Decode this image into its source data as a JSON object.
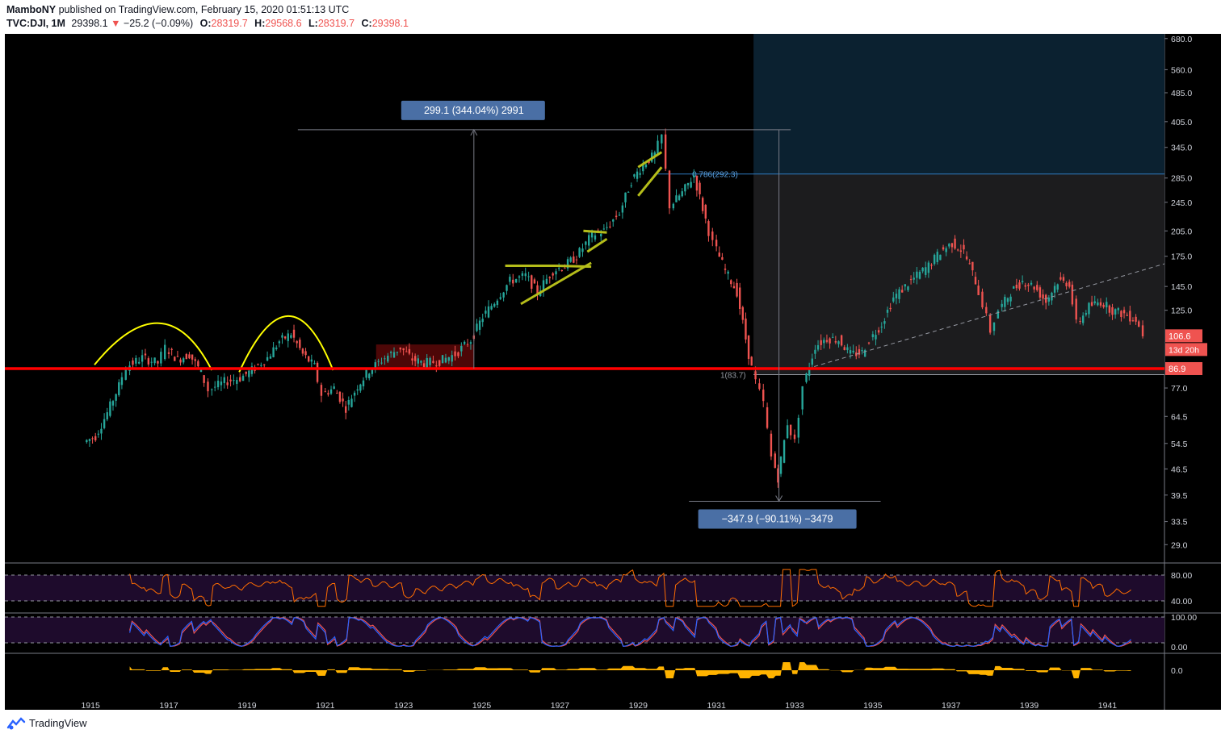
{
  "header": {
    "publisher": "MamboNY",
    "published_text": "published on TradingView.com, February 15, 2020 01:51:13 UTC",
    "symbol": "TVC:DJI, 1M",
    "last": "29398.1",
    "change": "−25.2 (−0.09%)",
    "o_label": "O:",
    "o_value": "28319.7",
    "h_label": "H:",
    "h_value": "29568.6",
    "l_label": "L:",
    "l_value": "28319.7",
    "c_label": "C:",
    "c_value": "29398.1"
  },
  "footer": {
    "brand": "TradingView"
  },
  "colors": {
    "up": "#26a69a",
    "down": "#ef5350",
    "background": "#000000",
    "support_line": "#ff0000",
    "trendline": "#b5bd1a",
    "arc": "#ffff00",
    "rsi": "#ff6d00",
    "stoch_k": "#2962ff",
    "stoch_d": "#ef5350",
    "osc": "#ffb300"
  },
  "chart_data": {
    "type": "candlestick",
    "scale": "log",
    "x_ticks": [
      "1915",
      "1917",
      "1919",
      "1921",
      "1923",
      "1925",
      "1927",
      "1929",
      "1931",
      "1933",
      "1935",
      "1937",
      "1939",
      "1941"
    ],
    "y_ticks": [
      "680.0",
      "560.0",
      "485.0",
      "405.0",
      "345.0",
      "285.0",
      "245.0",
      "205.0",
      "175.0",
      "145.0",
      "125.0",
      "106.6",
      "86.9",
      "77.0",
      "64.5",
      "54.5",
      "46.5",
      "39.5",
      "33.5",
      "29.0"
    ],
    "ylim": [
      26,
      700
    ],
    "price_labels": [
      {
        "value": 106.6,
        "text": "106.6",
        "sub": "13d 20h"
      },
      {
        "value": 86.9,
        "text": "86.9"
      }
    ],
    "support_level": 86.9,
    "measure_up": {
      "from_year": 1924.8,
      "to": 385,
      "base": 86.9,
      "label": "299.1 (344.04%) 2991"
    },
    "measure_down": {
      "at_year": 1932.6,
      "from": 385,
      "to": 38,
      "label": "−347.9 (−90.11%) −3479"
    },
    "fib": [
      {
        "ratio": "0.786",
        "value": 292.3,
        "label": "0.786(292.3)"
      },
      {
        "ratio": "1",
        "value": 83.7,
        "label": "1(83.7)"
      }
    ],
    "series": [
      {
        "name": "",
        "points": [
          [
            1914.9,
            55
          ],
          [
            1915.2,
            57
          ],
          [
            1915.5,
            66
          ],
          [
            1915.8,
            78
          ],
          [
            1916.0,
            88
          ],
          [
            1916.4,
            93
          ],
          [
            1916.8,
            90
          ],
          [
            1917.0,
            99
          ],
          [
            1917.3,
            92
          ],
          [
            1917.6,
            95
          ],
          [
            1917.9,
            85
          ],
          [
            1918.1,
            76
          ],
          [
            1918.5,
            80
          ],
          [
            1918.9,
            82
          ],
          [
            1919.2,
            86
          ],
          [
            1919.6,
            93
          ],
          [
            1919.9,
            103
          ],
          [
            1920.2,
            108
          ],
          [
            1920.5,
            95
          ],
          [
            1920.8,
            88
          ],
          [
            1921.0,
            74
          ],
          [
            1921.3,
            77
          ],
          [
            1921.6,
            68
          ],
          [
            1921.9,
            78
          ],
          [
            1922.2,
            86
          ],
          [
            1922.6,
            93
          ],
          [
            1923.0,
            99
          ],
          [
            1923.3,
            92
          ],
          [
            1923.6,
            90
          ],
          [
            1924.0,
            91
          ],
          [
            1924.4,
            95
          ],
          [
            1924.8,
            104
          ],
          [
            1925.1,
            120
          ],
          [
            1925.4,
            132
          ],
          [
            1925.8,
            150
          ],
          [
            1926.2,
            155
          ],
          [
            1926.5,
            140
          ],
          [
            1926.9,
            160
          ],
          [
            1927.2,
            165
          ],
          [
            1927.5,
            175
          ],
          [
            1927.9,
            200
          ],
          [
            1928.2,
            205
          ],
          [
            1928.6,
            230
          ],
          [
            1928.9,
            280
          ],
          [
            1929.2,
            310
          ],
          [
            1929.5,
            330
          ],
          [
            1929.7,
            370
          ],
          [
            1929.9,
            240
          ],
          [
            1930.2,
            260
          ],
          [
            1930.5,
            290
          ],
          [
            1930.8,
            220
          ],
          [
            1931.0,
            190
          ],
          [
            1931.3,
            160
          ],
          [
            1931.6,
            140
          ],
          [
            1931.9,
            95
          ],
          [
            1932.1,
            80
          ],
          [
            1932.3,
            70
          ],
          [
            1932.5,
            50
          ],
          [
            1932.65,
            44
          ],
          [
            1932.9,
            62
          ],
          [
            1933.1,
            55
          ],
          [
            1933.3,
            78
          ],
          [
            1933.6,
            100
          ],
          [
            1933.9,
            105
          ],
          [
            1934.2,
            104
          ],
          [
            1934.5,
            95
          ],
          [
            1934.8,
            96
          ],
          [
            1935.0,
            104
          ],
          [
            1935.3,
            115
          ],
          [
            1935.6,
            135
          ],
          [
            1935.9,
            145
          ],
          [
            1936.2,
            155
          ],
          [
            1936.5,
            165
          ],
          [
            1936.8,
            180
          ],
          [
            1937.1,
            190
          ],
          [
            1937.4,
            180
          ],
          [
            1937.7,
            150
          ],
          [
            1937.9,
            130
          ],
          [
            1938.1,
            110
          ],
          [
            1938.3,
            125
          ],
          [
            1938.6,
            140
          ],
          [
            1938.9,
            150
          ],
          [
            1939.2,
            145
          ],
          [
            1939.5,
            132
          ],
          [
            1939.8,
            150
          ],
          [
            1940.1,
            148
          ],
          [
            1940.3,
            115
          ],
          [
            1940.6,
            128
          ],
          [
            1940.9,
            132
          ],
          [
            1941.2,
            125
          ],
          [
            1941.5,
            122
          ],
          [
            1941.8,
            118
          ],
          [
            1942.0,
            108
          ]
        ]
      }
    ],
    "panes": [
      {
        "name": "",
        "ticks": [
          "80.00",
          "40.00"
        ]
      },
      {
        "name": "",
        "ticks": [
          "100.00",
          "0.00"
        ]
      },
      {
        "name": "",
        "ticks": [
          "0.0"
        ]
      }
    ]
  }
}
